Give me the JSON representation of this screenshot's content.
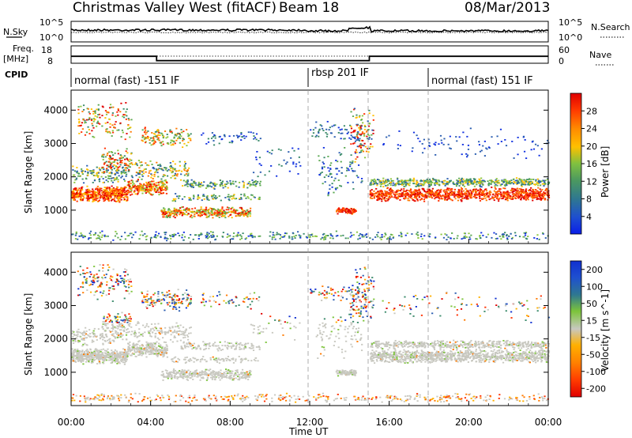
{
  "header": {
    "title": "Christmas Valley West (fitACF)",
    "beam": "Beam 18",
    "date": "08/Mar/2013"
  },
  "labels": {
    "nsky": "N.Sky",
    "nsearch": "N.Search",
    "freq_top": "Freq.",
    "freq_unit": "[MHz]",
    "nave": "Nave",
    "cpid": "CPID"
  },
  "noise_panel": {
    "left_ticks": [
      "10^5",
      "10^0"
    ],
    "right_ticks": [
      "10^5",
      "10^0"
    ]
  },
  "freq_panel": {
    "left_ticks": [
      "18",
      "8"
    ],
    "right_ticks": [
      "60",
      "0"
    ]
  },
  "cpid_segments": [
    {
      "label": "normal (fast) -151 IF",
      "start_hour": 0
    },
    {
      "label": "rbsp 201 IF",
      "start_hour": 12
    },
    {
      "label": "normal (fast) 151 IF",
      "start_hour": 18
    }
  ],
  "chart_data": {
    "type": "heatmap",
    "xlabel": "Time UT",
    "xticks": [
      "00:00",
      "04:00",
      "08:00",
      "12:00",
      "16:00",
      "20:00",
      "00:00"
    ],
    "xlim": [
      0,
      24
    ],
    "ylabel": "Slant Range [km]",
    "ylim": [
      0,
      4600
    ],
    "yticks": [
      "1000",
      "2000",
      "3000",
      "4000"
    ],
    "panels": [
      {
        "name": "power",
        "colorbar_label": "Power [dB]",
        "colorbar_ticks": [
          "4",
          "8",
          "12",
          "16",
          "20",
          "24",
          "28"
        ],
        "colors": [
          "#1030e0",
          "#2a5db0",
          "#3a8a6a",
          "#5aa850",
          "#8cc63f",
          "#ffc000",
          "#ff7a00",
          "#ff3000",
          "#e00000"
        ]
      },
      {
        "name": "velocity",
        "colorbar_label": "Velocity [m s^-1]",
        "colorbar_ticks": [
          "200",
          "100",
          "50",
          "15",
          "-15",
          "-50",
          "-100",
          "-200"
        ],
        "colors": [
          "#1030d0",
          "#2a5db0",
          "#3a8a6a",
          "#7cc43a",
          "#c8c8c0",
          "#ffb000",
          "#ff7a00",
          "#ff3000",
          "#e00000"
        ]
      }
    ],
    "frequency_mhz": [
      {
        "from_hour": 0,
        "to_hour": 4.3,
        "value": 12
      },
      {
        "from_hour": 4.3,
        "to_hour": 15.0,
        "value": 9.5
      },
      {
        "from_hour": 15.0,
        "to_hour": 24,
        "value": 12
      }
    ]
  }
}
